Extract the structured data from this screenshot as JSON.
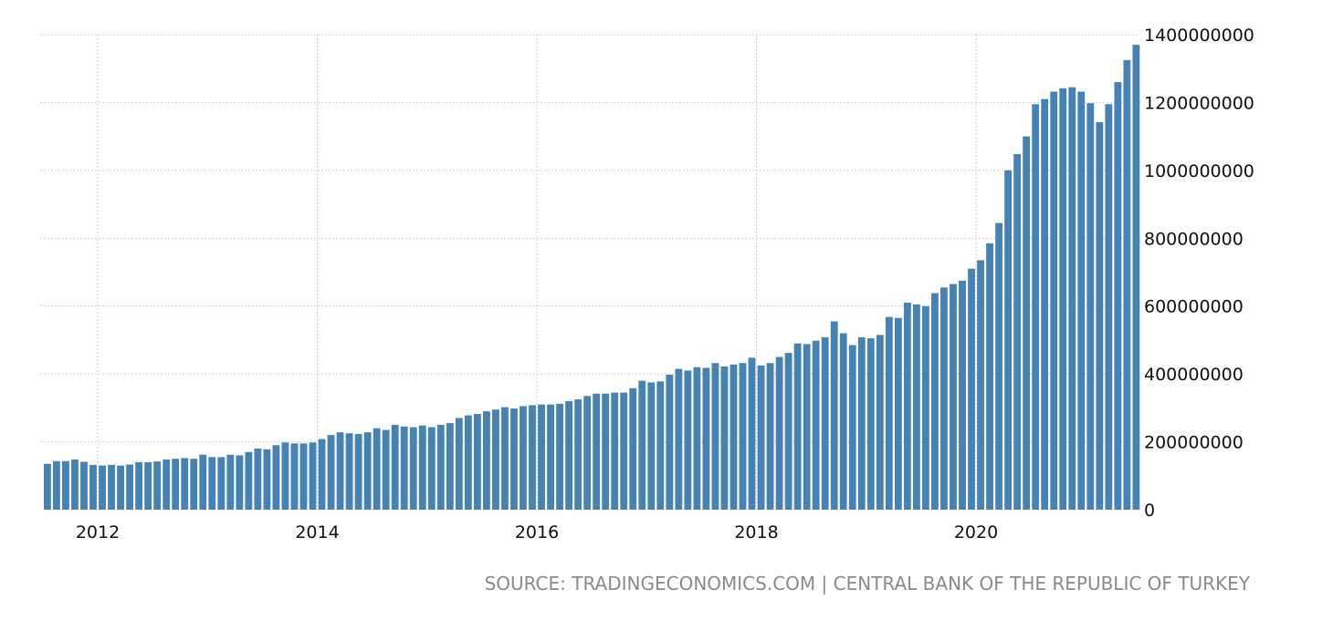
{
  "colors": {
    "bar": "#4682b4",
    "grid": "#d0d0d0",
    "text": "#111111",
    "source": "#8a8a8a"
  },
  "source_text": "SOURCE: TRADINGECONOMICS.COM | CENTRAL BANK OF THE REPUBLIC OF TURKEY",
  "chart_data": {
    "type": "bar",
    "title": "",
    "xlabel": "",
    "ylabel": "",
    "y_axis_side": "right",
    "grid": true,
    "ylim": [
      0,
      1400000000
    ],
    "y_ticks": [
      {
        "value": 0,
        "label": "0"
      },
      {
        "value": 200000000,
        "label": "200000000"
      },
      {
        "value": 400000000,
        "label": "400000000"
      },
      {
        "value": 600000000,
        "label": "600000000"
      },
      {
        "value": 800000000,
        "label": "800000000"
      },
      {
        "value": 1000000000,
        "label": "1000000000"
      },
      {
        "value": 1200000000,
        "label": "1200000000"
      },
      {
        "value": 1400000000,
        "label": "1400000000"
      }
    ],
    "x_ticks": [
      "2012",
      "2014",
      "2016",
      "2018",
      "2020"
    ],
    "x_start": "2011-07",
    "frequency": "monthly",
    "values": [
      135000000,
      143000000,
      143000000,
      148000000,
      141000000,
      132000000,
      130000000,
      132000000,
      130000000,
      133000000,
      140000000,
      140000000,
      142000000,
      148000000,
      150000000,
      152000000,
      150000000,
      162000000,
      155000000,
      155000000,
      162000000,
      160000000,
      170000000,
      180000000,
      178000000,
      190000000,
      198000000,
      195000000,
      195000000,
      198000000,
      208000000,
      220000000,
      228000000,
      225000000,
      223000000,
      228000000,
      240000000,
      235000000,
      250000000,
      245000000,
      243000000,
      248000000,
      243000000,
      250000000,
      255000000,
      270000000,
      278000000,
      282000000,
      290000000,
      295000000,
      302000000,
      298000000,
      305000000,
      308000000,
      310000000,
      310000000,
      312000000,
      320000000,
      325000000,
      335000000,
      342000000,
      342000000,
      345000000,
      345000000,
      358000000,
      380000000,
      375000000,
      378000000,
      398000000,
      415000000,
      410000000,
      420000000,
      418000000,
      432000000,
      422000000,
      428000000,
      432000000,
      448000000,
      425000000,
      432000000,
      450000000,
      462000000,
      490000000,
      488000000,
      498000000,
      508000000,
      555000000,
      520000000,
      485000000,
      508000000,
      505000000,
      515000000,
      568000000,
      565000000,
      610000000,
      605000000,
      600000000,
      638000000,
      655000000,
      665000000,
      675000000,
      710000000,
      735000000,
      785000000,
      845000000,
      1000000000,
      1048000000,
      1100000000,
      1195000000,
      1210000000,
      1232000000,
      1242000000,
      1245000000,
      1232000000,
      1198000000,
      1142000000,
      1195000000,
      1260000000,
      1325000000,
      1370000000
    ]
  }
}
